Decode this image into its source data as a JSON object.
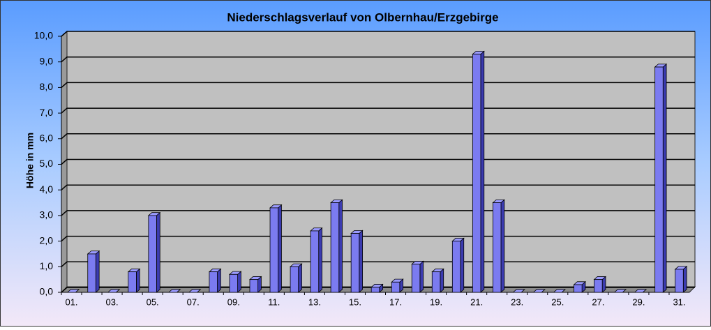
{
  "chart_data": {
    "type": "bar3d",
    "title": "Niederschlagsverlauf von Olbernhau/Erzgebirge",
    "ylabel": "Höhe in  mm",
    "categories": [
      "01.",
      null,
      "03.",
      null,
      "05.",
      null,
      "07.",
      null,
      "09.",
      null,
      "11.",
      null,
      "13.",
      null,
      "15.",
      null,
      "17.",
      null,
      "19.",
      null,
      "21.",
      null,
      "23.",
      null,
      "25.",
      null,
      "27.",
      null,
      "29.",
      null,
      "31."
    ],
    "values": [
      0,
      1.5,
      0,
      0.8,
      3.0,
      0,
      0,
      0.8,
      0.7,
      0.5,
      3.3,
      1.0,
      2.4,
      3.5,
      2.3,
      0.2,
      0.4,
      1.1,
      0.8,
      2.0,
      9.3,
      3.5,
      0,
      0,
      0,
      0.3,
      0.5,
      0,
      0,
      8.8,
      0.9
    ],
    "color": "#7b7bf0",
    "ylim": [
      0,
      10
    ],
    "yticks": [
      {
        "value": 0,
        "label": "0,0"
      },
      {
        "value": 1,
        "label": "1,0"
      },
      {
        "value": 2,
        "label": "2,0"
      },
      {
        "value": 3,
        "label": "3,0"
      },
      {
        "value": 4,
        "label": "4,0"
      },
      {
        "value": 5,
        "label": "5,0"
      },
      {
        "value": 6,
        "label": "6,0"
      },
      {
        "value": 7,
        "label": "7,0"
      },
      {
        "value": 8,
        "label": "8,0"
      },
      {
        "value": 9,
        "label": "9,0"
      },
      {
        "value": 10,
        "label": "10,0"
      }
    ],
    "grid": true
  }
}
